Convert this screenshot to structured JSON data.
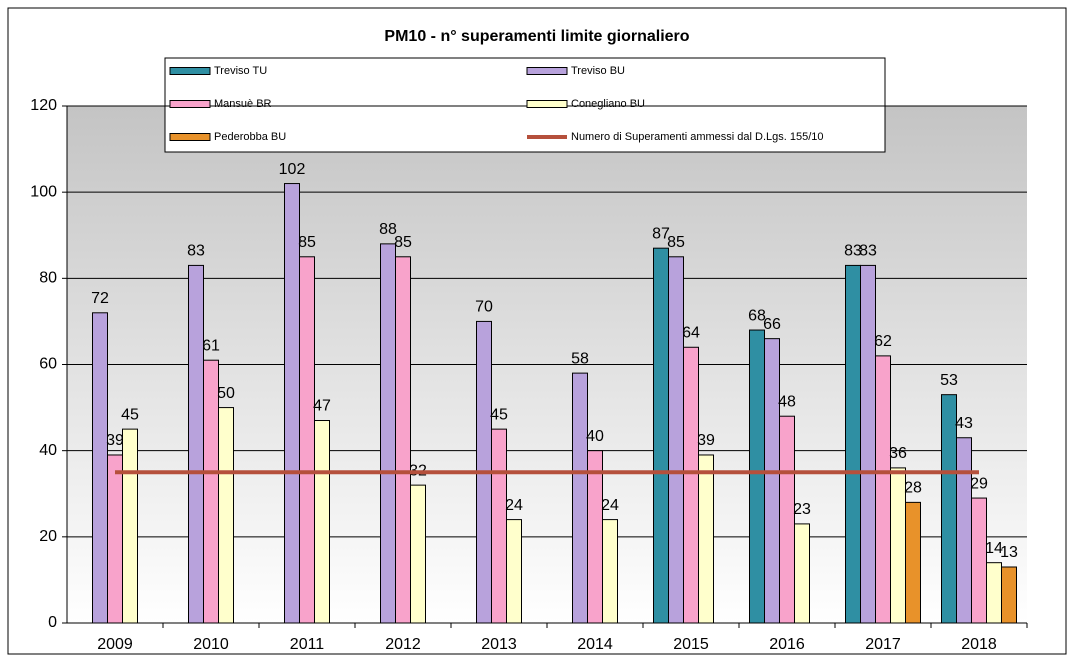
{
  "chart_data": {
    "type": "bar",
    "title": "PM10 - n° superamenti limite giornaliero",
    "categories": [
      "2009",
      "2010",
      "2011",
      "2012",
      "2013",
      "2014",
      "2015",
      "2016",
      "2017",
      "2018"
    ],
    "series": [
      {
        "name": "Treviso TU",
        "color": "#2f8fa3",
        "values": [
          null,
          null,
          null,
          null,
          null,
          null,
          87,
          68,
          83,
          53
        ]
      },
      {
        "name": "Treviso BU",
        "color": "#b8a2dc",
        "values": [
          72,
          83,
          102,
          88,
          70,
          58,
          85,
          66,
          83,
          43
        ]
      },
      {
        "name": "Mansuè BR",
        "color": "#f8a3cb",
        "values": [
          39,
          61,
          85,
          85,
          45,
          40,
          64,
          48,
          62,
          29
        ]
      },
      {
        "name": "Conegliano BU",
        "color": "#ffffcc",
        "values": [
          45,
          50,
          47,
          32,
          24,
          24,
          39,
          23,
          36,
          14
        ]
      },
      {
        "name": "Pederobba BU",
        "color": "#e8922a",
        "values": [
          null,
          null,
          null,
          null,
          null,
          null,
          null,
          null,
          28,
          13
        ]
      },
      {
        "name": "Numero di Superamenti ammessi dal D.Lgs. 155/10",
        "color": "#b5503c",
        "type": "line",
        "values": [
          35,
          35,
          35,
          35,
          35,
          35,
          35,
          35,
          35,
          35
        ]
      }
    ],
    "ylim": [
      0,
      120
    ],
    "yticks": [
      0,
      20,
      40,
      60,
      80,
      100,
      120
    ],
    "grid": true
  }
}
